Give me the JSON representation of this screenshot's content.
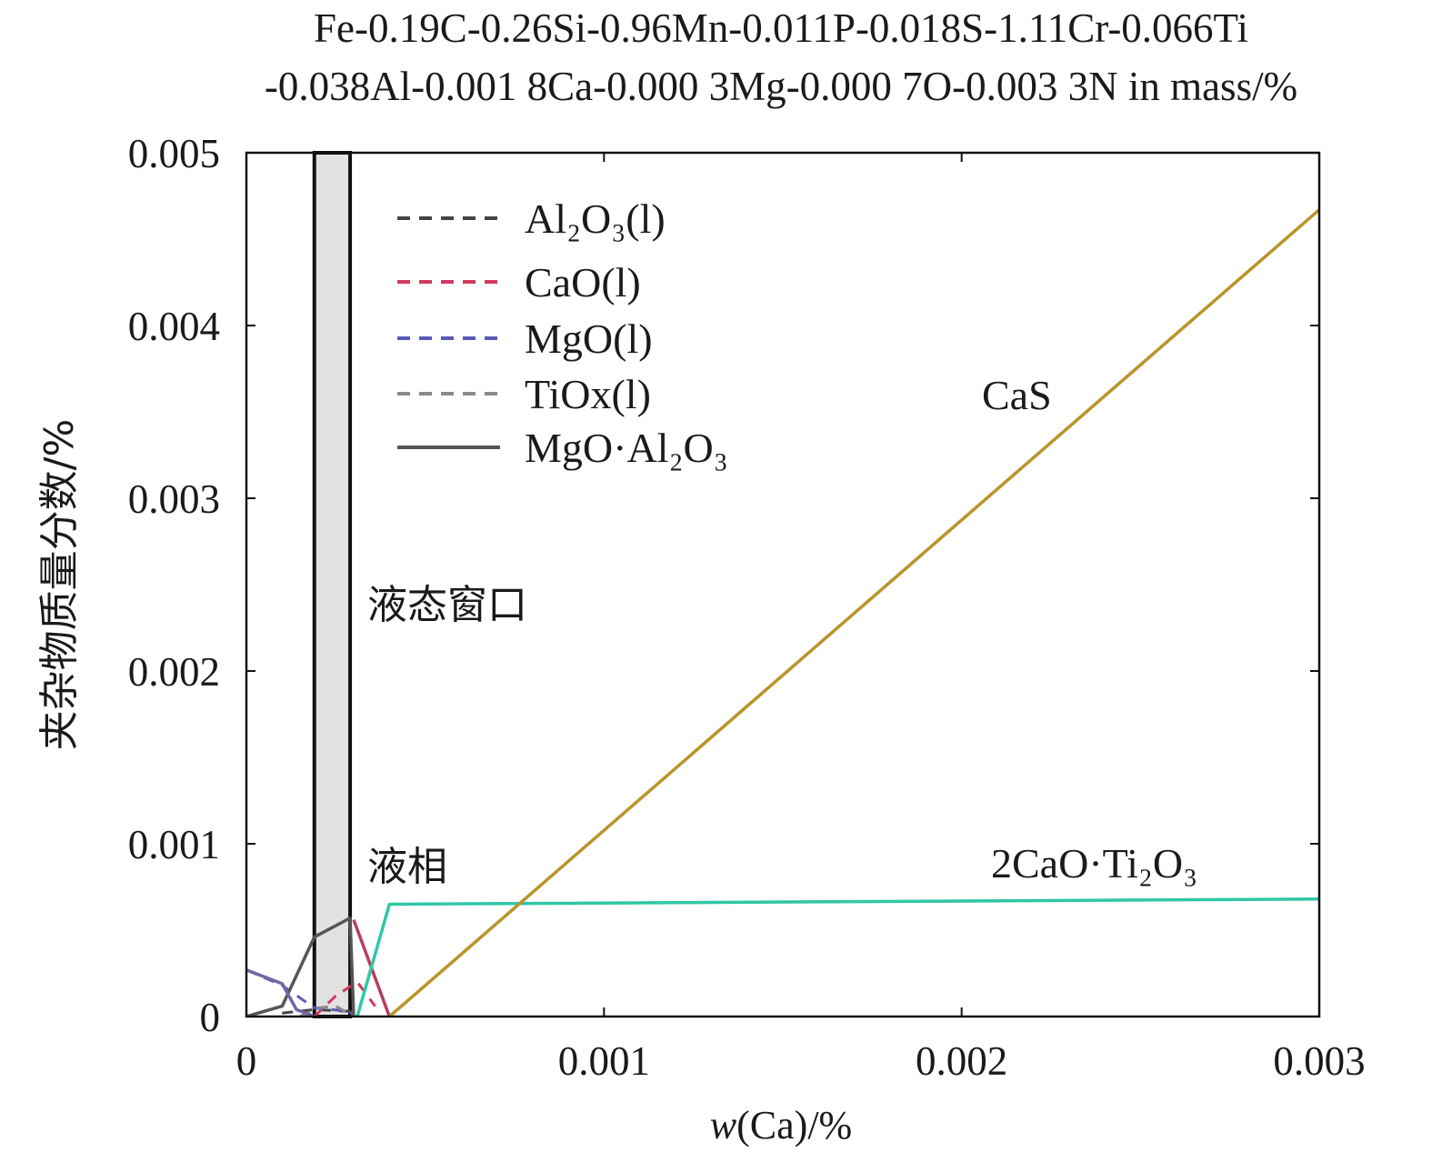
{
  "chart_data": {
    "type": "line",
    "title_line1": "Fe-0.19C-0.26Si-0.96Mn-0.011P-0.018S-1.11Cr-0.066Ti",
    "title_line2": "-0.038Al-0.001 8Ca-0.000 3Mg-0.000 7O-0.003 3N in mass/%",
    "xlabel_italic": "w",
    "xlabel_rest": "(Ca)/%",
    "ylabel": "夹杂物质量分数/%",
    "xlim": [
      0,
      0.003
    ],
    "ylim": [
      0,
      0.005
    ],
    "x_ticks": [
      "0",
      "0.001",
      "0.002",
      "0.003"
    ],
    "y_ticks": [
      "0",
      "0.001",
      "0.002",
      "0.003",
      "0.004",
      "0.005"
    ],
    "legend": [
      {
        "label": "Al₂O₃(l)",
        "color": "#444444",
        "style": "dashed"
      },
      {
        "label": "CaO(l)",
        "color": "#d23a5e",
        "style": "dashed"
      },
      {
        "label": "MgO(l)",
        "color": "#5a5ab8",
        "style": "dashed"
      },
      {
        "label": "TiOx(l)",
        "color": "#8a8a8a",
        "style": "dashed"
      },
      {
        "label": "MgO·Al₂O₃",
        "color": "#555555",
        "style": "solid"
      }
    ],
    "shaded_region": {
      "x_range": [
        0.00019,
        0.00029
      ],
      "label": "液态窗口",
      "color": "#e2e2e2"
    },
    "annotations": {
      "liquid_phase": "液相",
      "cas": "CaS",
      "ca2ti": "2CaO·Ti₂O₃"
    },
    "series": [
      {
        "name": "Al₂O₃(l)",
        "color": "#444444",
        "style": "dashed",
        "x": [
          0.0001,
          0.00019,
          0.00029,
          0.0003
        ],
        "y": [
          2e-05,
          4e-05,
          3e-05,
          0.0
        ]
      },
      {
        "name": "CaO(l)",
        "color": "#d23a5e",
        "style": "dashed",
        "x": [
          0.00019,
          0.00025,
          0.00031,
          0.00036
        ],
        "y": [
          0.0,
          0.00012,
          0.0002,
          6e-05
        ]
      },
      {
        "name": "MgO(l)",
        "color": "#5a5ab8",
        "style": "dashed",
        "x": [
          0.0,
          0.0001,
          0.00019,
          0.00029,
          0.0003
        ],
        "y": [
          0.00027,
          0.00018,
          5e-05,
          3e-05,
          0.0
        ]
      },
      {
        "name": "TiOx(l)",
        "color": "#8a8a8a",
        "style": "dashed",
        "x": [
          0.00015,
          0.0002,
          0.00025,
          0.0003
        ],
        "y": [
          0.0,
          5e-05,
          6e-05,
          0.0
        ]
      },
      {
        "name": "MgO·Al₂O₃",
        "color": "#555555",
        "style": "solid",
        "x": [
          0.0,
          0.0001,
          0.00019,
          0.00029,
          0.0003
        ],
        "y": [
          0.0,
          6e-05,
          0.00046,
          0.00057,
          0.0
        ]
      },
      {
        "name": "液相 (MgO)",
        "color": "#7266a6",
        "style": "solid",
        "x": [
          0.0,
          0.0001,
          0.00014,
          0.00019
        ],
        "y": [
          0.00027,
          0.00019,
          4e-05,
          0.0
        ]
      },
      {
        "name": "液相 (CaO)",
        "color": "#b5405e",
        "style": "solid",
        "x": [
          0.0003,
          0.0004
        ],
        "y": [
          0.00056,
          0.0
        ]
      },
      {
        "name": "2CaO·Ti₂O₃",
        "color": "#2fc7a6",
        "style": "solid",
        "x": [
          0.0003,
          0.00031,
          0.0004,
          0.003
        ],
        "y": [
          0.0,
          0.0,
          0.00065,
          0.00068
        ]
      },
      {
        "name": "CaS",
        "color": "#b8952a",
        "style": "solid",
        "x": [
          0.0004,
          0.003
        ],
        "y": [
          0.0,
          0.00467
        ]
      }
    ]
  }
}
